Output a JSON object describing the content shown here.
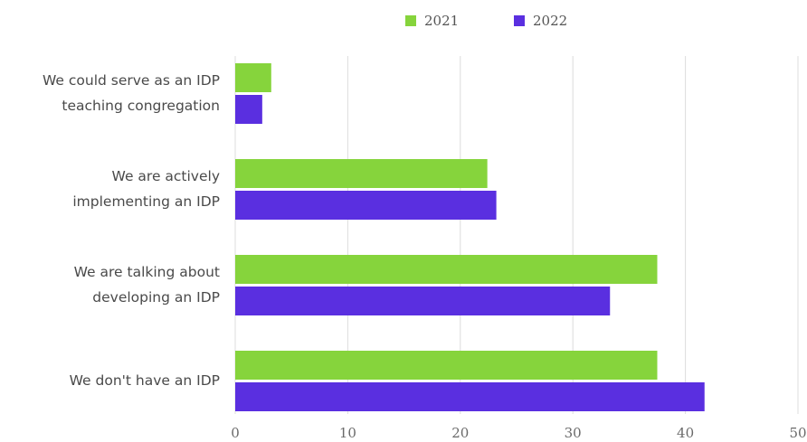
{
  "chart_data": {
    "type": "bar",
    "orientation": "horizontal",
    "title": "",
    "xlabel": "",
    "ylabel": "",
    "categories": [
      [
        "We could serve as an IDP",
        "teaching congregation"
      ],
      [
        "We are actively",
        "implementing an IDP"
      ],
      [
        "We are talking about",
        "developing an IDP"
      ],
      [
        "We don't have an IDP"
      ]
    ],
    "series": [
      {
        "name": "2021",
        "color": "#86d43c",
        "values": [
          3.2,
          22.4,
          37.5,
          37.5
        ]
      },
      {
        "name": "2022",
        "color": "#5a2fe0",
        "values": [
          2.4,
          23.2,
          33.3,
          41.7
        ]
      }
    ],
    "xlim": [
      0,
      50
    ],
    "xticks": [
      "0",
      "10",
      "20",
      "30",
      "40",
      "50"
    ],
    "grid": true,
    "legend_position": "top-center"
  }
}
